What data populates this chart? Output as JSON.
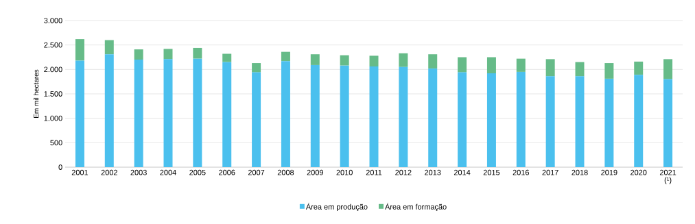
{
  "chart_data": {
    "type": "bar",
    "stacked": true,
    "ylabel": "Em mil hectares",
    "categories": [
      "2001",
      "2002",
      "2003",
      "2004",
      "2005",
      "2006",
      "2007",
      "2008",
      "2009",
      "2010",
      "2011",
      "2012",
      "2013",
      "2014",
      "2015",
      "2016",
      "2017",
      "2018",
      "2019",
      "2020",
      "2021 (¹)"
    ],
    "series": [
      {
        "name": "Área em produção",
        "color": "#4bc0ee",
        "values": [
          2180,
          2310,
          2200,
          2210,
          2220,
          2150,
          1940,
          2170,
          2090,
          2080,
          2060,
          2050,
          2020,
          1940,
          1920,
          1950,
          1860,
          1860,
          1810,
          1890,
          1800
        ]
      },
      {
        "name": "Área em formação",
        "color": "#66bb88",
        "values": [
          440,
          290,
          210,
          210,
          220,
          170,
          190,
          190,
          220,
          210,
          220,
          280,
          290,
          310,
          330,
          270,
          350,
          290,
          320,
          270,
          410
        ]
      }
    ],
    "ylim": [
      0,
      3000
    ],
    "yticks": [
      {
        "value": 0,
        "label": "0"
      },
      {
        "value": 500,
        "label": "500"
      },
      {
        "value": 1000,
        "label": "1.000"
      },
      {
        "value": 1500,
        "label": "1.500"
      },
      {
        "value": 2000,
        "label": "2.000"
      },
      {
        "value": 2500,
        "label": "2.500"
      },
      {
        "value": 3000,
        "label": "3.000"
      }
    ],
    "grid": "y",
    "legend": "bottom"
  }
}
